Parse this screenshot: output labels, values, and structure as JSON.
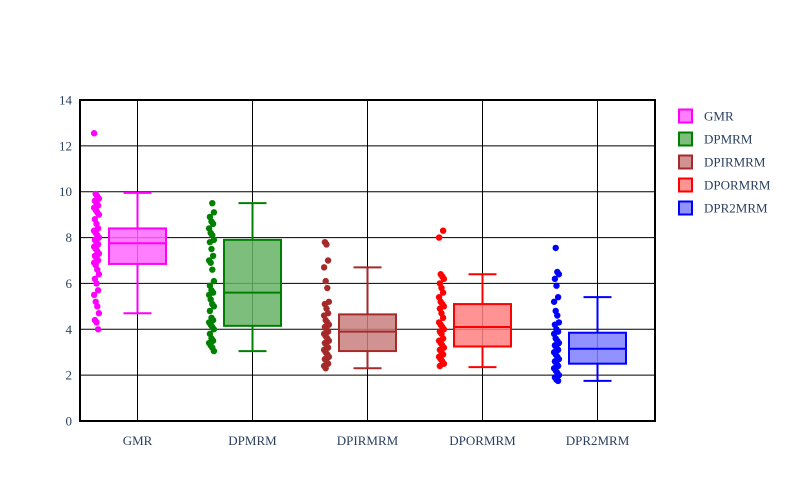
{
  "chart_data": {
    "type": "box",
    "title": "",
    "xlabel": "",
    "ylabel": "",
    "ylim": [
      0,
      14
    ],
    "y_ticks": [
      0,
      2,
      4,
      6,
      8,
      10,
      12,
      14
    ],
    "categories": [
      "GMR",
      "DPMRM",
      "DPIRMRM",
      "DPORMRM",
      "DPR2MRM"
    ],
    "grid": true,
    "legend_position": "top-right",
    "series": [
      {
        "name": "GMR",
        "color": "#ff00ff",
        "fill": "#ff66ff",
        "box": {
          "lower_fence": 4.7,
          "q1": 6.85,
          "median": 7.75,
          "q3": 8.4,
          "upper_fence": 9.95
        },
        "points": [
          12.55,
          9.9,
          9.8,
          9.7,
          9.6,
          9.5,
          9.4,
          9.3,
          9.2,
          9.1,
          9.0,
          8.8,
          8.6,
          8.4,
          8.3,
          8.2,
          8.1,
          8.0,
          7.9,
          7.8,
          7.7,
          7.6,
          7.5,
          7.4,
          7.3,
          7.2,
          7.1,
          7.0,
          6.9,
          6.8,
          6.6,
          6.4,
          6.2,
          6.0,
          5.7,
          5.5,
          5.2,
          5.0,
          4.7,
          4.4,
          4.3,
          4.0
        ]
      },
      {
        "name": "DPMRM",
        "color": "#008000",
        "fill": "#66b366",
        "box": {
          "lower_fence": 3.05,
          "q1": 4.15,
          "median": 5.6,
          "q3": 7.9,
          "upper_fence": 9.5
        },
        "points": [
          9.5,
          9.1,
          8.9,
          8.7,
          8.6,
          8.4,
          8.2,
          8.1,
          7.9,
          7.8,
          7.5,
          7.2,
          7.0,
          6.9,
          6.6,
          6.1,
          5.9,
          5.7,
          5.6,
          5.5,
          5.3,
          5.1,
          5.0,
          4.8,
          4.5,
          4.4,
          4.3,
          4.2,
          4.1,
          4.0,
          3.8,
          3.6,
          3.5,
          3.4,
          3.3,
          3.2,
          3.05
        ]
      },
      {
        "name": "DPIRMRM",
        "color": "#a52a2a",
        "fill": "#c97f7f",
        "box": {
          "lower_fence": 2.3,
          "q1": 3.05,
          "median": 3.9,
          "q3": 4.65,
          "upper_fence": 6.7
        },
        "points": [
          7.8,
          7.7,
          7.0,
          6.7,
          6.1,
          5.8,
          5.2,
          5.1,
          4.9,
          4.7,
          4.6,
          4.4,
          4.3,
          4.2,
          4.1,
          4.0,
          3.9,
          3.8,
          3.7,
          3.6,
          3.5,
          3.4,
          3.3,
          3.2,
          3.1,
          3.0,
          2.9,
          2.8,
          2.7,
          2.6,
          2.5,
          2.4,
          2.3
        ]
      },
      {
        "name": "DPORMRM",
        "color": "#ff0000",
        "fill": "#ff7f7f",
        "box": {
          "lower_fence": 2.35,
          "q1": 3.25,
          "median": 4.1,
          "q3": 5.1,
          "upper_fence": 6.4
        },
        "points": [
          8.3,
          8.0,
          6.4,
          6.3,
          6.2,
          6.0,
          5.8,
          5.6,
          5.4,
          5.2,
          5.1,
          5.0,
          4.9,
          4.7,
          4.5,
          4.3,
          4.2,
          4.1,
          4.0,
          3.9,
          3.8,
          3.6,
          3.5,
          3.4,
          3.3,
          3.2,
          3.1,
          3.0,
          2.9,
          2.8,
          2.7,
          2.6,
          2.5,
          2.4
        ]
      },
      {
        "name": "DPR2MRM",
        "color": "#0000ff",
        "fill": "#7f7fff",
        "box": {
          "lower_fence": 1.75,
          "q1": 2.5,
          "median": 3.15,
          "q3": 3.85,
          "upper_fence": 5.4
        },
        "points": [
          7.55,
          6.5,
          6.4,
          6.2,
          5.9,
          5.4,
          5.2,
          4.8,
          4.6,
          4.3,
          4.2,
          4.0,
          3.9,
          3.8,
          3.6,
          3.5,
          3.4,
          3.3,
          3.2,
          3.1,
          3.0,
          2.9,
          2.8,
          2.7,
          2.6,
          2.5,
          2.4,
          2.3,
          2.2,
          2.1,
          2.0,
          1.9,
          1.8,
          1.75
        ]
      }
    ]
  }
}
